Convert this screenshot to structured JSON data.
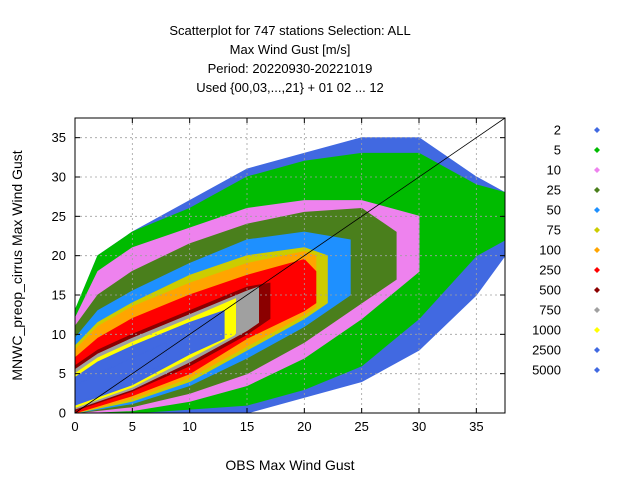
{
  "chart_data": {
    "type": "scatter",
    "title": [
      "Scatterplot for  747 stations Selection: ALL",
      "Max Wind Gust [m/s]",
      "Period: 20220930-20221019",
      "Used {00,03,...,21} + 01 02 ... 12"
    ],
    "xlabel": "OBS Max Wind Gust",
    "ylabel": "MNWC_preop_cirrus Max Wind Gust",
    "xlim": [
      0,
      37.5
    ],
    "ylim": [
      0,
      37.5
    ],
    "xticks": [
      "0",
      "5",
      "10",
      "15",
      "20",
      "25",
      "30",
      "35"
    ],
    "yticks": [
      "0",
      "5",
      "10",
      "15",
      "20",
      "25",
      "30",
      "35"
    ],
    "grid": true,
    "diagonal_line": true,
    "legend_placement": "right",
    "series": [
      {
        "name": "2",
        "color": "#4169e1",
        "upper": [
          [
            0,
            13
          ],
          [
            2,
            20
          ],
          [
            5,
            23
          ],
          [
            10,
            27
          ],
          [
            15,
            31
          ],
          [
            20,
            33
          ],
          [
            25,
            35
          ],
          [
            30,
            35
          ],
          [
            35,
            30
          ],
          [
            37.5,
            28
          ]
        ],
        "lower": [
          [
            0,
            0
          ],
          [
            5,
            0
          ],
          [
            10,
            0
          ],
          [
            15,
            0
          ],
          [
            20,
            2
          ],
          [
            25,
            4
          ],
          [
            30,
            8
          ],
          [
            35,
            15
          ],
          [
            37.5,
            20
          ]
        ]
      },
      {
        "name": "5",
        "color": "#00bb00",
        "upper": [
          [
            0,
            13
          ],
          [
            2,
            20
          ],
          [
            5,
            23
          ],
          [
            10,
            26
          ],
          [
            15,
            30
          ],
          [
            20,
            32
          ],
          [
            25,
            33
          ],
          [
            30,
            33
          ],
          [
            35,
            29
          ],
          [
            37.5,
            28
          ]
        ],
        "lower": [
          [
            0,
            0
          ],
          [
            5,
            0
          ],
          [
            10,
            0.5
          ],
          [
            15,
            1
          ],
          [
            20,
            3
          ],
          [
            25,
            6
          ],
          [
            30,
            12
          ],
          [
            35,
            20
          ],
          [
            37.5,
            22
          ]
        ]
      },
      {
        "name": "10",
        "color": "#ee82ee",
        "upper": [
          [
            0,
            12
          ],
          [
            2,
            18
          ],
          [
            5,
            21
          ],
          [
            10,
            23.5
          ],
          [
            15,
            26
          ],
          [
            20,
            27
          ],
          [
            25,
            27
          ],
          [
            30,
            25
          ]
        ],
        "lower": [
          [
            0,
            0
          ],
          [
            5,
            0.3
          ],
          [
            10,
            1.5
          ],
          [
            15,
            3.5
          ],
          [
            20,
            7
          ],
          [
            25,
            12
          ],
          [
            30,
            18
          ]
        ]
      },
      {
        "name": "25",
        "color": "#4a7f1c",
        "upper": [
          [
            0,
            11
          ],
          [
            2,
            15
          ],
          [
            5,
            18
          ],
          [
            10,
            21.5
          ],
          [
            15,
            24
          ],
          [
            20,
            25.5
          ],
          [
            25,
            26
          ],
          [
            28,
            23
          ]
        ],
        "lower": [
          [
            0,
            0
          ],
          [
            5,
            0.8
          ],
          [
            10,
            2.5
          ],
          [
            15,
            5
          ],
          [
            20,
            9
          ],
          [
            25,
            14
          ],
          [
            28,
            17
          ]
        ]
      },
      {
        "name": "50",
        "color": "#1e90ff",
        "upper": [
          [
            0,
            9.5
          ],
          [
            2,
            13
          ],
          [
            5,
            15.5
          ],
          [
            10,
            19
          ],
          [
            15,
            22
          ],
          [
            20,
            23
          ],
          [
            24,
            22
          ]
        ],
        "lower": [
          [
            0,
            0
          ],
          [
            5,
            1.2
          ],
          [
            10,
            3.5
          ],
          [
            15,
            7
          ],
          [
            20,
            11
          ],
          [
            24,
            15
          ]
        ]
      },
      {
        "name": "75",
        "color": "#cccc00",
        "upper": [
          [
            0,
            8.5
          ],
          [
            2,
            11.5
          ],
          [
            5,
            14
          ],
          [
            10,
            17.5
          ],
          [
            15,
            20
          ],
          [
            20,
            21
          ],
          [
            22,
            20
          ]
        ],
        "lower": [
          [
            0,
            0
          ],
          [
            5,
            1.5
          ],
          [
            10,
            4
          ],
          [
            15,
            8
          ],
          [
            20,
            12
          ],
          [
            22,
            14
          ]
        ]
      },
      {
        "name": "100",
        "color": "#ffa500",
        "upper": [
          [
            0,
            8
          ],
          [
            2,
            11
          ],
          [
            5,
            13.5
          ],
          [
            10,
            16.5
          ],
          [
            15,
            19
          ],
          [
            20,
            20.5
          ],
          [
            21,
            20
          ]
        ],
        "lower": [
          [
            0,
            0
          ],
          [
            5,
            1.8
          ],
          [
            10,
            4.5
          ],
          [
            15,
            8.5
          ],
          [
            20,
            12.5
          ],
          [
            21,
            13.5
          ]
        ]
      },
      {
        "name": "250",
        "color": "#ff0000",
        "upper": [
          [
            0,
            7
          ],
          [
            2,
            9.5
          ],
          [
            5,
            12
          ],
          [
            10,
            15
          ],
          [
            15,
            17.5
          ],
          [
            20,
            19.5
          ],
          [
            21,
            18
          ]
        ],
        "lower": [
          [
            0,
            0
          ],
          [
            5,
            2.2
          ],
          [
            10,
            5
          ],
          [
            15,
            9.5
          ],
          [
            20,
            13
          ],
          [
            21,
            14
          ]
        ]
      },
      {
        "name": "500",
        "color": "#8b0000",
        "upper": [
          [
            0,
            6
          ],
          [
            2,
            8
          ],
          [
            5,
            10
          ],
          [
            10,
            13
          ],
          [
            15,
            16
          ],
          [
            17,
            16.5
          ]
        ],
        "lower": [
          [
            0,
            0.3
          ],
          [
            5,
            2.8
          ],
          [
            10,
            6
          ],
          [
            15,
            10
          ],
          [
            17,
            12
          ]
        ]
      },
      {
        "name": "750",
        "color": "#a0a0a0",
        "upper": [
          [
            0,
            5.5
          ],
          [
            2,
            7.5
          ],
          [
            5,
            9.5
          ],
          [
            10,
            12.5
          ],
          [
            15,
            15.5
          ],
          [
            16,
            16
          ]
        ],
        "lower": [
          [
            0,
            0.5
          ],
          [
            5,
            3
          ],
          [
            10,
            6.5
          ],
          [
            15,
            10.5
          ],
          [
            16,
            11.5
          ]
        ]
      },
      {
        "name": "1000",
        "color": "#ffff00",
        "upper": [
          [
            0,
            5
          ],
          [
            2,
            7
          ],
          [
            5,
            9
          ],
          [
            10,
            12
          ],
          [
            14,
            14.5
          ]
        ],
        "lower": [
          [
            0,
            0.7
          ],
          [
            5,
            3.3
          ],
          [
            10,
            7
          ],
          [
            14,
            10
          ]
        ]
      },
      {
        "name": "2500",
        "color": "#4169e1",
        "upper": [
          [
            0,
            4.5
          ],
          [
            2,
            6.5
          ],
          [
            5,
            8.5
          ],
          [
            10,
            11.5
          ],
          [
            13,
            13
          ]
        ],
        "lower": [
          [
            0,
            1
          ],
          [
            5,
            3.6
          ],
          [
            10,
            7.5
          ],
          [
            13,
            9.5
          ]
        ]
      },
      {
        "name": "5000",
        "color": "#4169e1",
        "upper": [
          [
            0,
            3.5
          ],
          [
            2,
            5
          ],
          [
            5,
            7
          ],
          [
            8,
            9
          ]
        ],
        "lower": [
          [
            0,
            1.2
          ],
          [
            5,
            4
          ],
          [
            8,
            6.5
          ]
        ]
      }
    ]
  }
}
